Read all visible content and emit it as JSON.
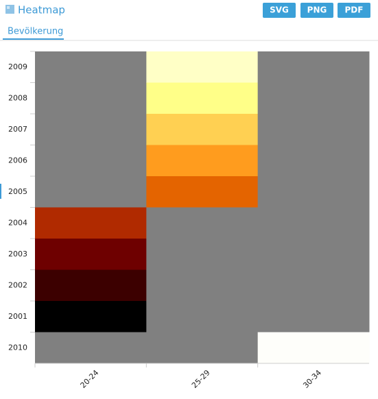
{
  "header": {
    "title": "Heatmap",
    "buttons": [
      "SVG",
      "PNG",
      "PDF"
    ]
  },
  "tabs": [
    "Bevölkerung"
  ],
  "chart_data": {
    "type": "heatmap",
    "x": [
      "20-24",
      "25-29",
      "30-34"
    ],
    "y": [
      "2009",
      "2008",
      "2007",
      "2006",
      "2005",
      "2004",
      "2003",
      "2002",
      "2001",
      "2010"
    ],
    "missing_color": "#808080",
    "cells": [
      {
        "x": "20-24",
        "y": "2004",
        "color": "#b02a00"
      },
      {
        "x": "20-24",
        "y": "2003",
        "color": "#6e0000"
      },
      {
        "x": "20-24",
        "y": "2002",
        "color": "#3c0000"
      },
      {
        "x": "20-24",
        "y": "2001",
        "color": "#000000"
      },
      {
        "x": "25-29",
        "y": "2009",
        "color": "#ffffc6"
      },
      {
        "x": "25-29",
        "y": "2008",
        "color": "#ffff88"
      },
      {
        "x": "25-29",
        "y": "2007",
        "color": "#ffd052"
      },
      {
        "x": "25-29",
        "y": "2006",
        "color": "#ff9c1e"
      },
      {
        "x": "25-29",
        "y": "2005",
        "color": "#e46400"
      },
      {
        "x": "30-34",
        "y": "2010",
        "color": "#fefefa"
      }
    ]
  }
}
